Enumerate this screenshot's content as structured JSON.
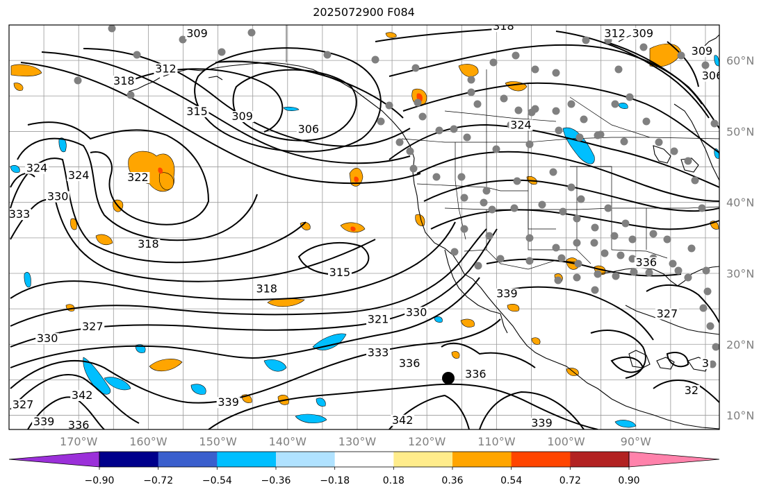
{
  "title": "2025072900 F084",
  "map": {
    "lon_min": -180,
    "lon_max": -78,
    "lat_min": 8,
    "lat_max": 65,
    "lat_ticks": [
      {
        "value": 60,
        "label": "60°N"
      },
      {
        "value": 50,
        "label": "50°N"
      },
      {
        "value": 40,
        "label": "40°N"
      },
      {
        "value": 30,
        "label": "30°N"
      },
      {
        "value": 20,
        "label": "20°N"
      },
      {
        "value": 10,
        "label": "10°N"
      }
    ],
    "lon_ticks": [
      {
        "value": -170,
        "label": "170°W"
      },
      {
        "value": -160,
        "label": "160°W"
      },
      {
        "value": -150,
        "label": "150°W"
      },
      {
        "value": -140,
        "label": "140°W"
      },
      {
        "value": -130,
        "label": "130°W"
      },
      {
        "value": -120,
        "label": "120°W"
      },
      {
        "value": -110,
        "label": "110°W"
      },
      {
        "value": -100,
        "label": "100°W"
      },
      {
        "value": -90,
        "label": "90°W"
      }
    ],
    "contour_labels": [
      {
        "text": "309",
        "lon": -153,
        "lat": 63.5
      },
      {
        "text": "318",
        "lon": -109,
        "lat": 64.5
      },
      {
        "text": "312",
        "lon": -93,
        "lat": 63.5
      },
      {
        "text": "309",
        "lon": -89,
        "lat": 63.5
      },
      {
        "text": "309",
        "lon": -80.5,
        "lat": 61
      },
      {
        "text": "306",
        "lon": -79,
        "lat": 57.5
      },
      {
        "text": "318",
        "lon": -163.5,
        "lat": 56.8
      },
      {
        "text": "312",
        "lon": -157.5,
        "lat": 58.5
      },
      {
        "text": "315",
        "lon": -153,
        "lat": 52.5
      },
      {
        "text": "309",
        "lon": -146.5,
        "lat": 51.8
      },
      {
        "text": "306",
        "lon": -137,
        "lat": 50
      },
      {
        "text": "324",
        "lon": -106.5,
        "lat": 50.6
      },
      {
        "text": "324",
        "lon": -176,
        "lat": 44.5
      },
      {
        "text": "324",
        "lon": -170,
        "lat": 43.5
      },
      {
        "text": "322",
        "lon": -161.5,
        "lat": 43.2
      },
      {
        "text": "330",
        "lon": -173,
        "lat": 40.5
      },
      {
        "text": "333",
        "lon": -178.5,
        "lat": 38
      },
      {
        "text": "318",
        "lon": -160,
        "lat": 33.8
      },
      {
        "text": "315",
        "lon": -132.5,
        "lat": 29.8
      },
      {
        "text": "318",
        "lon": -143,
        "lat": 27.5
      },
      {
        "text": "321",
        "lon": -127,
        "lat": 23.2
      },
      {
        "text": "330",
        "lon": -121.5,
        "lat": 24.2
      },
      {
        "text": "339",
        "lon": -108.5,
        "lat": 26.8
      },
      {
        "text": "336",
        "lon": -88.5,
        "lat": 31.2
      },
      {
        "text": "327",
        "lon": -85.5,
        "lat": 24
      },
      {
        "text": "330",
        "lon": -174.5,
        "lat": 20.5
      },
      {
        "text": "327",
        "lon": -168,
        "lat": 22.2
      },
      {
        "text": "333",
        "lon": -127,
        "lat": 18.5
      },
      {
        "text": "336",
        "lon": -122.5,
        "lat": 17
      },
      {
        "text": "336",
        "lon": -113,
        "lat": 15.5
      },
      {
        "text": "327",
        "lon": -178,
        "lat": 11.2
      },
      {
        "text": "342",
        "lon": -169.5,
        "lat": 12.5
      },
      {
        "text": "339",
        "lon": -175,
        "lat": 8.8
      },
      {
        "text": "336",
        "lon": -170,
        "lat": 8.3
      },
      {
        "text": "339",
        "lon": -148.5,
        "lat": 11.5
      },
      {
        "text": "342",
        "lon": -123.5,
        "lat": 9
      },
      {
        "text": "339",
        "lon": -103.5,
        "lat": 8.6
      },
      {
        "text": "32",
        "lon": -82,
        "lat": 13.2
      },
      {
        "text": "3",
        "lon": -80,
        "lat": 17
      }
    ]
  },
  "colorbar": {
    "colors": [
      "#9b30d9",
      "#00008b",
      "#3a5fcd",
      "#00bfff",
      "#b0e2ff",
      "#ffffff",
      "#ffec8b",
      "#ffa500",
      "#ff4500",
      "#b22222",
      "#ff82ab"
    ],
    "tick_labels": [
      "−0.90",
      "−0.72",
      "−0.54",
      "−0.36",
      "−0.18",
      "0.18",
      "0.36",
      "0.54",
      "0.72",
      "0.90"
    ]
  }
}
